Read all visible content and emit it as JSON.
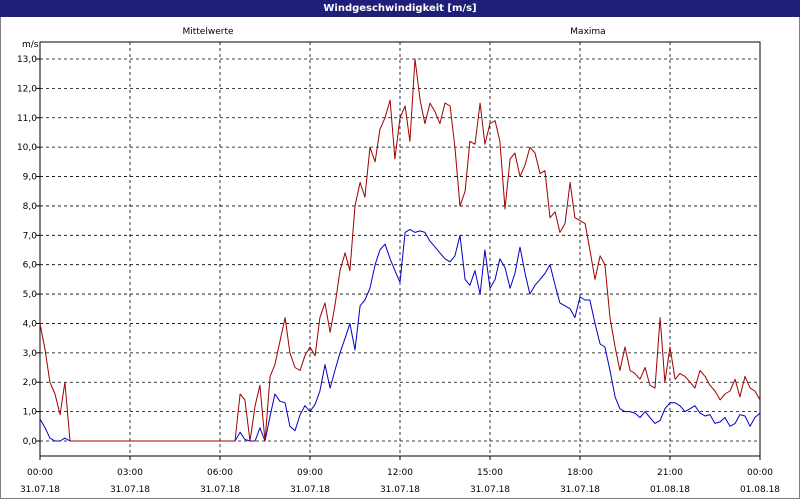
{
  "window": {
    "title": "Windgeschwindigkeit [m/s]"
  },
  "chart_data": {
    "type": "line",
    "title": "Windgeschwindigkeit [m/s]",
    "ylabel": "m/s",
    "xlabel": "",
    "ylim": [
      0,
      13
    ],
    "y_ticks": [
      "0,0",
      "1,0",
      "2,0",
      "3,0",
      "4,0",
      "5,0",
      "6,0",
      "7,0",
      "8,0",
      "9,0",
      "10,0",
      "11,0",
      "12,0",
      "13,0"
    ],
    "x_ticks": [
      {
        "time": "00:00",
        "date": "31.07.18"
      },
      {
        "time": "03:00",
        "date": "31.07.18"
      },
      {
        "time": "06:00",
        "date": "31.07.18"
      },
      {
        "time": "09:00",
        "date": "31.07.18"
      },
      {
        "time": "12:00",
        "date": "31.07.18"
      },
      {
        "time": "15:00",
        "date": "31.07.18"
      },
      {
        "time": "18:00",
        "date": "31.07.18"
      },
      {
        "time": "21:00",
        "date": "01.08.18"
      },
      {
        "time": "00:00",
        "date": "01.08.18"
      }
    ],
    "grid": true,
    "series": [
      {
        "name": "Mittelwerte",
        "color": "#0000c8",
        "points": [
          [
            0.0,
            0.75
          ],
          [
            0.17,
            0.45
          ],
          [
            0.33,
            0.1
          ],
          [
            0.5,
            0.0
          ],
          [
            0.67,
            0.0
          ],
          [
            0.83,
            0.1
          ],
          [
            1.0,
            0.0
          ],
          [
            1.17,
            0.0
          ],
          [
            1.33,
            0.0
          ],
          [
            6.5,
            0.0
          ],
          [
            6.67,
            0.3
          ],
          [
            6.83,
            0.05
          ],
          [
            7.0,
            0.0
          ],
          [
            7.17,
            0.0
          ],
          [
            7.33,
            0.45
          ],
          [
            7.5,
            0.0
          ],
          [
            7.67,
            0.85
          ],
          [
            7.83,
            1.6
          ],
          [
            8.0,
            1.35
          ],
          [
            8.17,
            1.3
          ],
          [
            8.33,
            0.5
          ],
          [
            8.5,
            0.35
          ],
          [
            8.67,
            0.9
          ],
          [
            8.83,
            1.2
          ],
          [
            9.0,
            1.0
          ],
          [
            9.17,
            1.25
          ],
          [
            9.33,
            1.7
          ],
          [
            9.5,
            2.6
          ],
          [
            9.67,
            1.8
          ],
          [
            9.83,
            2.4
          ],
          [
            10.0,
            3.0
          ],
          [
            10.17,
            3.5
          ],
          [
            10.33,
            4.0
          ],
          [
            10.5,
            3.1
          ],
          [
            10.67,
            4.6
          ],
          [
            10.83,
            4.8
          ],
          [
            11.0,
            5.2
          ],
          [
            11.17,
            6.0
          ],
          [
            11.33,
            6.5
          ],
          [
            11.5,
            6.7
          ],
          [
            11.67,
            6.2
          ],
          [
            11.83,
            5.8
          ],
          [
            12.0,
            5.4
          ],
          [
            12.17,
            7.1
          ],
          [
            12.33,
            7.2
          ],
          [
            12.5,
            7.1
          ],
          [
            12.67,
            7.15
          ],
          [
            12.83,
            7.1
          ],
          [
            13.0,
            6.8
          ],
          [
            13.17,
            6.6
          ],
          [
            13.33,
            6.4
          ],
          [
            13.5,
            6.2
          ],
          [
            13.67,
            6.1
          ],
          [
            13.83,
            6.3
          ],
          [
            14.0,
            7.0
          ],
          [
            14.17,
            5.5
          ],
          [
            14.33,
            5.3
          ],
          [
            14.5,
            5.8
          ],
          [
            14.67,
            5.0
          ],
          [
            14.83,
            6.5
          ],
          [
            15.0,
            5.2
          ],
          [
            15.17,
            5.5
          ],
          [
            15.33,
            6.2
          ],
          [
            15.5,
            5.9
          ],
          [
            15.67,
            5.2
          ],
          [
            15.83,
            5.7
          ],
          [
            16.0,
            6.6
          ],
          [
            16.17,
            5.7
          ],
          [
            16.33,
            5.0
          ],
          [
            16.5,
            5.3
          ],
          [
            16.67,
            5.5
          ],
          [
            16.83,
            5.7
          ],
          [
            17.0,
            6.0
          ],
          [
            17.17,
            5.3
          ],
          [
            17.33,
            4.7
          ],
          [
            17.5,
            4.6
          ],
          [
            17.67,
            4.5
          ],
          [
            17.83,
            4.2
          ],
          [
            18.0,
            4.9
          ],
          [
            18.17,
            4.8
          ],
          [
            18.33,
            4.8
          ],
          [
            18.5,
            4.0
          ],
          [
            18.67,
            3.3
          ],
          [
            18.83,
            3.2
          ],
          [
            19.0,
            2.4
          ],
          [
            19.17,
            1.5
          ],
          [
            19.33,
            1.1
          ],
          [
            19.5,
            1.0
          ],
          [
            19.67,
            1.0
          ],
          [
            19.83,
            0.95
          ],
          [
            20.0,
            0.8
          ],
          [
            20.17,
            1.0
          ],
          [
            20.33,
            0.8
          ],
          [
            20.5,
            0.6
          ],
          [
            20.67,
            0.7
          ],
          [
            20.83,
            1.1
          ],
          [
            21.0,
            1.3
          ],
          [
            21.17,
            1.3
          ],
          [
            21.33,
            1.2
          ],
          [
            21.5,
            1.0
          ],
          [
            21.67,
            1.1
          ],
          [
            21.83,
            1.2
          ],
          [
            22.0,
            0.95
          ],
          [
            22.17,
            0.85
          ],
          [
            22.33,
            0.9
          ],
          [
            22.5,
            0.6
          ],
          [
            22.67,
            0.65
          ],
          [
            22.83,
            0.8
          ],
          [
            23.0,
            0.5
          ],
          [
            23.17,
            0.6
          ],
          [
            23.33,
            0.9
          ],
          [
            23.5,
            0.85
          ],
          [
            23.67,
            0.5
          ],
          [
            23.83,
            0.8
          ],
          [
            24.0,
            0.95
          ]
        ]
      },
      {
        "name": "Maxima",
        "color": "#a00000",
        "points": [
          [
            0.0,
            4.0
          ],
          [
            0.17,
            3.1
          ],
          [
            0.33,
            2.0
          ],
          [
            0.5,
            1.6
          ],
          [
            0.67,
            0.9
          ],
          [
            0.83,
            2.0
          ],
          [
            1.0,
            0.0
          ],
          [
            1.17,
            0.0
          ],
          [
            1.33,
            0.0
          ],
          [
            6.5,
            0.0
          ],
          [
            6.67,
            1.6
          ],
          [
            6.83,
            1.4
          ],
          [
            7.0,
            0.0
          ],
          [
            7.17,
            1.2
          ],
          [
            7.33,
            1.9
          ],
          [
            7.5,
            0.0
          ],
          [
            7.67,
            2.2
          ],
          [
            7.83,
            2.6
          ],
          [
            8.0,
            3.4
          ],
          [
            8.17,
            4.2
          ],
          [
            8.33,
            3.0
          ],
          [
            8.5,
            2.5
          ],
          [
            8.67,
            2.4
          ],
          [
            8.83,
            2.9
          ],
          [
            9.0,
            3.2
          ],
          [
            9.17,
            2.9
          ],
          [
            9.33,
            4.2
          ],
          [
            9.5,
            4.7
          ],
          [
            9.67,
            3.7
          ],
          [
            9.83,
            4.6
          ],
          [
            10.0,
            5.8
          ],
          [
            10.17,
            6.4
          ],
          [
            10.33,
            5.8
          ],
          [
            10.5,
            8.0
          ],
          [
            10.67,
            8.8
          ],
          [
            10.83,
            8.3
          ],
          [
            11.0,
            10.0
          ],
          [
            11.17,
            9.5
          ],
          [
            11.33,
            10.6
          ],
          [
            11.5,
            11.0
          ],
          [
            11.67,
            11.6
          ],
          [
            11.83,
            9.6
          ],
          [
            12.0,
            11.0
          ],
          [
            12.17,
            11.4
          ],
          [
            12.33,
            10.2
          ],
          [
            12.5,
            13.0
          ],
          [
            12.67,
            11.6
          ],
          [
            12.83,
            10.8
          ],
          [
            13.0,
            11.5
          ],
          [
            13.17,
            11.2
          ],
          [
            13.33,
            10.8
          ],
          [
            13.5,
            11.5
          ],
          [
            13.67,
            11.4
          ],
          [
            13.83,
            10.0
          ],
          [
            14.0,
            8.0
          ],
          [
            14.17,
            8.5
          ],
          [
            14.33,
            10.2
          ],
          [
            14.5,
            10.1
          ],
          [
            14.67,
            11.5
          ],
          [
            14.83,
            10.1
          ],
          [
            15.0,
            10.8
          ],
          [
            15.17,
            10.9
          ],
          [
            15.33,
            10.2
          ],
          [
            15.5,
            7.9
          ],
          [
            15.67,
            9.6
          ],
          [
            15.83,
            9.8
          ],
          [
            16.0,
            9.0
          ],
          [
            16.17,
            9.4
          ],
          [
            16.33,
            10.0
          ],
          [
            16.5,
            9.8
          ],
          [
            16.67,
            9.1
          ],
          [
            16.83,
            9.2
          ],
          [
            17.0,
            7.6
          ],
          [
            17.17,
            7.8
          ],
          [
            17.33,
            7.1
          ],
          [
            17.5,
            7.4
          ],
          [
            17.67,
            8.8
          ],
          [
            17.83,
            7.6
          ],
          [
            18.0,
            7.5
          ],
          [
            18.17,
            7.4
          ],
          [
            18.33,
            6.5
          ],
          [
            18.5,
            5.5
          ],
          [
            18.67,
            6.3
          ],
          [
            18.83,
            6.0
          ],
          [
            19.0,
            4.2
          ],
          [
            19.17,
            3.2
          ],
          [
            19.33,
            2.4
          ],
          [
            19.5,
            3.2
          ],
          [
            19.67,
            2.4
          ],
          [
            19.83,
            2.3
          ],
          [
            20.0,
            2.1
          ],
          [
            20.17,
            2.5
          ],
          [
            20.33,
            1.9
          ],
          [
            20.5,
            1.8
          ],
          [
            20.67,
            4.2
          ],
          [
            20.83,
            2.0
          ],
          [
            21.0,
            3.2
          ],
          [
            21.17,
            2.1
          ],
          [
            21.33,
            2.3
          ],
          [
            21.5,
            2.2
          ],
          [
            21.67,
            2.0
          ],
          [
            21.83,
            1.8
          ],
          [
            22.0,
            2.4
          ],
          [
            22.17,
            2.2
          ],
          [
            22.33,
            1.9
          ],
          [
            22.5,
            1.7
          ],
          [
            22.67,
            1.4
          ],
          [
            22.83,
            1.6
          ],
          [
            23.0,
            1.7
          ],
          [
            23.17,
            2.1
          ],
          [
            23.33,
            1.5
          ],
          [
            23.5,
            2.2
          ],
          [
            23.67,
            1.8
          ],
          [
            23.83,
            1.7
          ],
          [
            24.0,
            1.4
          ]
        ]
      }
    ]
  }
}
